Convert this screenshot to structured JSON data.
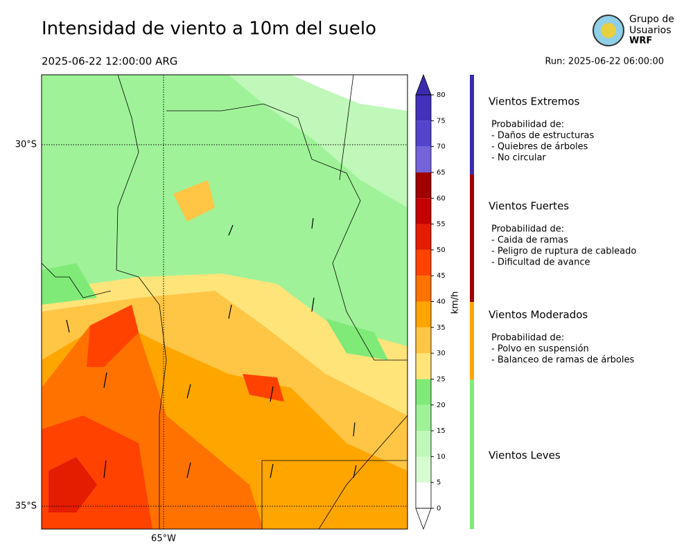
{
  "header": {
    "title": "Intensidad de viento a 10m del suelo",
    "valid_time": "2025-06-22 12:00:00 ARG",
    "run": "Run: 2025-06-22 06:00:00",
    "logo": {
      "line1": "Grupo de",
      "line2": "Usuarios",
      "line3": "WRF"
    }
  },
  "map": {
    "lat_labels": [
      "30°S",
      "35°S"
    ],
    "lon_labels": [
      "65°W"
    ]
  },
  "colorbar": {
    "label": "km/h",
    "ticks": [
      0,
      5,
      10,
      15,
      20,
      25,
      30,
      35,
      40,
      45,
      50,
      55,
      60,
      65,
      70,
      75,
      80
    ],
    "colors": [
      "#ffffff",
      "#d8fcd2",
      "#bff8b8",
      "#9ff298",
      "#7fea78",
      "#ffe47a",
      "#ffc545",
      "#ffa500",
      "#ff7200",
      "#ff4200",
      "#e41c00",
      "#c40000",
      "#a00000",
      "#7563db",
      "#5344cc",
      "#4330bb"
    ],
    "over_color": "#3c2aae",
    "under_color": "#ffffff"
  },
  "categories": [
    {
      "title": "Vientos Extremos",
      "color": "#3b2bb0",
      "heading": "Probabilidad de:",
      "items": [
        "- Daños de estructuras",
        "- Quiebres de árboles",
        "- No circular"
      ]
    },
    {
      "title": "Vientos Fuertes",
      "color": "#a00000",
      "heading": "Probabilidad de:",
      "items": [
        "- Caida de ramas",
        "- Peligro de ruptura de cableado",
        "- Dificultad de avance"
      ]
    },
    {
      "title": "Vientos Moderados",
      "color": "#a86a00",
      "bar_color": "#ffa500",
      "heading": "Probabilidad de:",
      "items": [
        "- Polvo en suspensión",
        "- Balanceo de ramas de árboles"
      ]
    },
    {
      "title": "Vientos Leves",
      "color": "#3a7a30",
      "bar_color": "#7fea78",
      "items": []
    }
  ]
}
